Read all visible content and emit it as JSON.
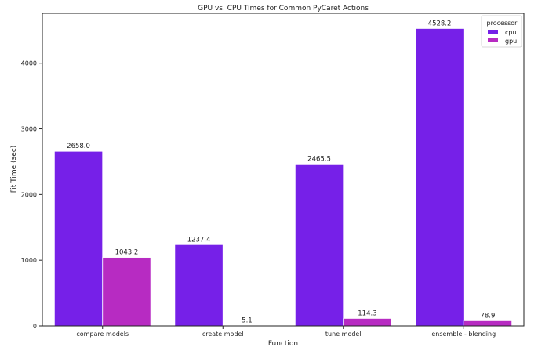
{
  "chart_data": {
    "type": "bar",
    "title": "GPU vs. CPU Times for Common PyCaret Actions",
    "xlabel": "Function",
    "ylabel": "Fit Time (sec)",
    "categories": [
      "compare models",
      "create model",
      "tune model",
      "ensemble - blending"
    ],
    "series": [
      {
        "name": "cpu",
        "color": "#7620e8",
        "values": [
          2658.0,
          1237.4,
          2465.5,
          4528.2
        ]
      },
      {
        "name": "gpu",
        "color": "#b72bc2",
        "values": [
          1043.2,
          5.1,
          114.3,
          78.9
        ]
      }
    ],
    "ylim": [
      0,
      4760
    ],
    "yticks": [
      0,
      1000,
      2000,
      3000,
      4000
    ],
    "legend": {
      "title": "processor",
      "position": "top-right"
    },
    "grid": false
  }
}
